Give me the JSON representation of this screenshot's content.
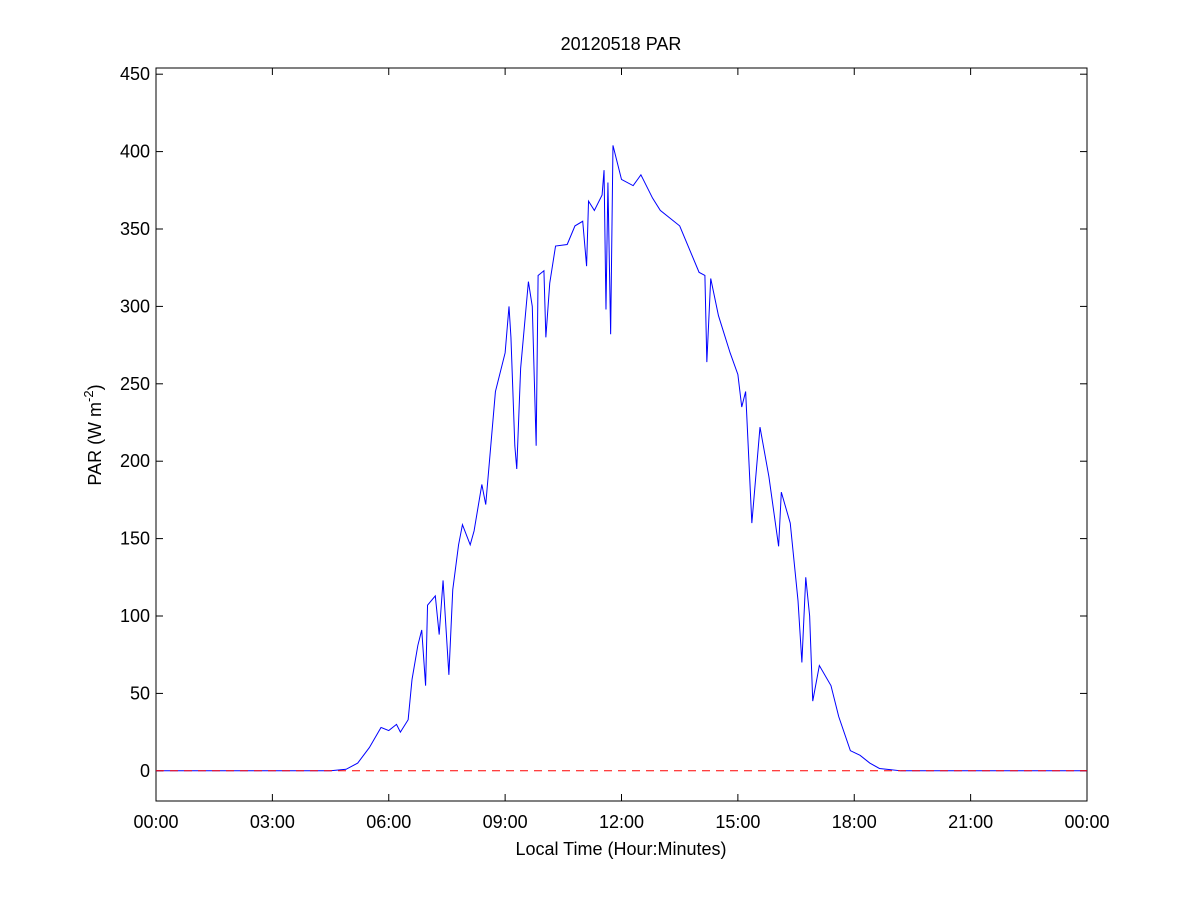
{
  "chart_data": {
    "type": "line",
    "title": "20120518 PAR",
    "xlabel": "Local Time (Hour:Minutes)",
    "ylabel_parts": [
      "PAR (W m",
      "-2",
      ")"
    ],
    "xlim": [
      0,
      24
    ],
    "ylim": [
      -19.5,
      454
    ],
    "xticks": [
      {
        "value": 0,
        "label": "00:00"
      },
      {
        "value": 3,
        "label": "03:00"
      },
      {
        "value": 6,
        "label": "06:00"
      },
      {
        "value": 9,
        "label": "09:00"
      },
      {
        "value": 12,
        "label": "12:00"
      },
      {
        "value": 15,
        "label": "15:00"
      },
      {
        "value": 18,
        "label": "18:00"
      },
      {
        "value": 21,
        "label": "21:00"
      },
      {
        "value": 24,
        "label": "00:00"
      }
    ],
    "yticks": [
      0,
      50,
      100,
      150,
      200,
      250,
      300,
      350,
      400,
      450
    ],
    "series": [
      {
        "color": "#0000ff",
        "dashed": false,
        "x": [
          0,
          4.5,
          4.9,
          5.2,
          5.5,
          5.8,
          6.0,
          6.2,
          6.3,
          6.5,
          6.6,
          6.75,
          6.85,
          6.95,
          7.0,
          7.2,
          7.3,
          7.4,
          7.55,
          7.65,
          7.8,
          7.9,
          8.1,
          8.2,
          8.4,
          8.5,
          8.75,
          9.0,
          9.1,
          9.15,
          9.25,
          9.3,
          9.4,
          9.6,
          9.7,
          9.8,
          9.85,
          10.0,
          10.05,
          10.15,
          10.3,
          10.6,
          10.8,
          11.0,
          11.1,
          11.15,
          11.3,
          11.5,
          11.55,
          11.6,
          11.65,
          11.72,
          11.78,
          12.0,
          12.3,
          12.5,
          12.8,
          13.0,
          13.5,
          14.0,
          14.15,
          14.2,
          14.3,
          14.5,
          14.8,
          15.0,
          15.1,
          15.2,
          15.36,
          15.57,
          15.8,
          16.05,
          16.12,
          16.35,
          16.55,
          16.65,
          16.75,
          16.85,
          16.93,
          17.1,
          17.4,
          17.6,
          17.9,
          18.15,
          18.4,
          18.65,
          19.2,
          24
        ],
        "values": [
          0,
          0,
          1,
          5,
          15,
          28,
          26,
          30,
          25,
          33,
          59,
          81,
          91,
          55,
          107,
          113,
          88,
          123,
          62,
          117,
          146,
          159,
          146,
          155,
          185,
          172,
          245,
          270,
          300,
          280,
          210,
          195,
          260,
          316,
          300,
          210,
          320,
          323,
          280,
          315,
          339,
          340,
          352,
          355,
          326,
          368,
          362,
          372,
          388,
          298,
          380,
          282,
          404,
          382,
          378,
          385,
          370,
          362,
          352,
          322,
          320,
          264,
          318,
          294,
          270,
          256,
          235,
          245,
          160,
          222,
          190,
          145,
          180,
          160,
          110,
          70,
          125,
          100,
          45,
          68,
          55,
          35,
          13,
          10,
          5,
          1.5,
          0,
          0
        ]
      },
      {
        "color": "#ff0000",
        "dashed": true,
        "x": [
          0,
          24
        ],
        "values": [
          0,
          0
        ]
      }
    ]
  }
}
